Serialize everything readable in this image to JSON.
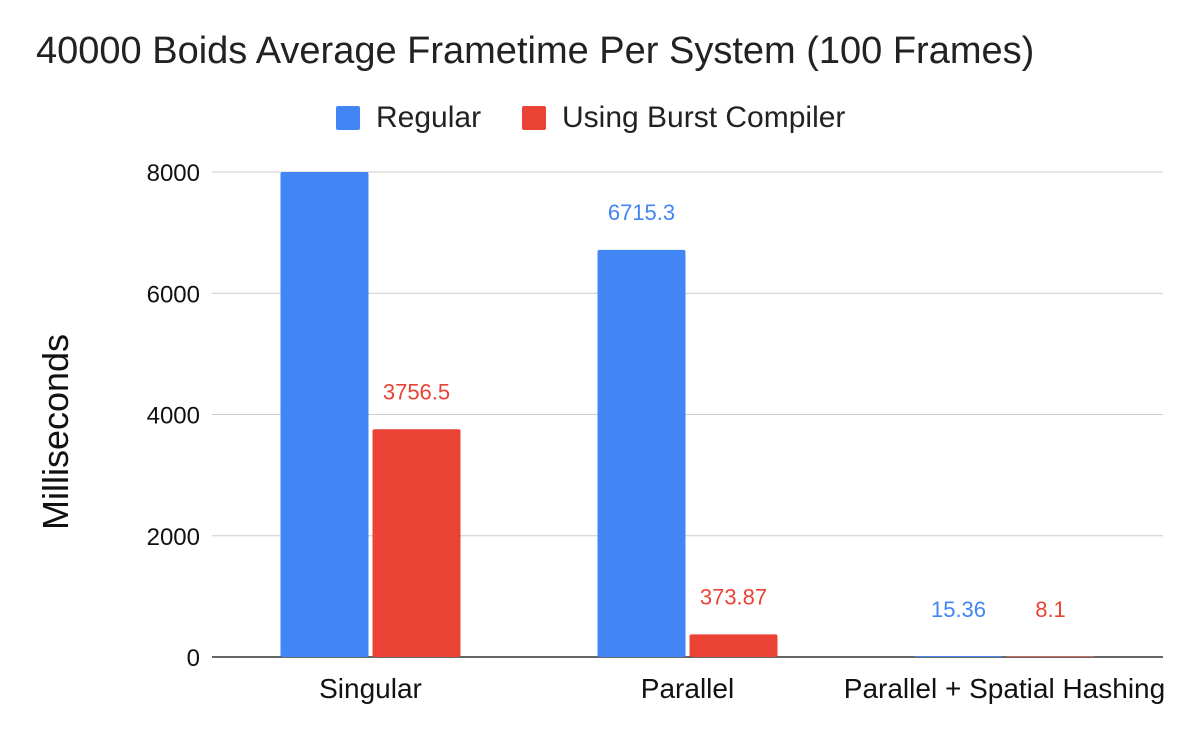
{
  "chart_data": {
    "type": "bar",
    "title": "40000 Boids Average Frametime Per System (100 Frames)",
    "xlabel": "",
    "ylabel": "Milliseconds",
    "categories": [
      "Singular",
      "Parallel",
      "Parallel + Spatial Hashing"
    ],
    "series": [
      {
        "name": "Regular",
        "color": "#4285f4",
        "values": [
          8000,
          6715.3,
          15.36
        ],
        "labels": [
          "",
          "6715.3",
          "15.36"
        ]
      },
      {
        "name": "Using Burst Compiler",
        "color": "#ea4335",
        "values": [
          3756.5,
          373.87,
          8.1
        ],
        "labels": [
          "3756.5",
          "373.87",
          "8.1"
        ]
      }
    ],
    "ylim": [
      0,
      8000
    ],
    "yticks": [
      0,
      2000,
      4000,
      6000,
      8000
    ],
    "grid": true,
    "legend_position": "top"
  }
}
